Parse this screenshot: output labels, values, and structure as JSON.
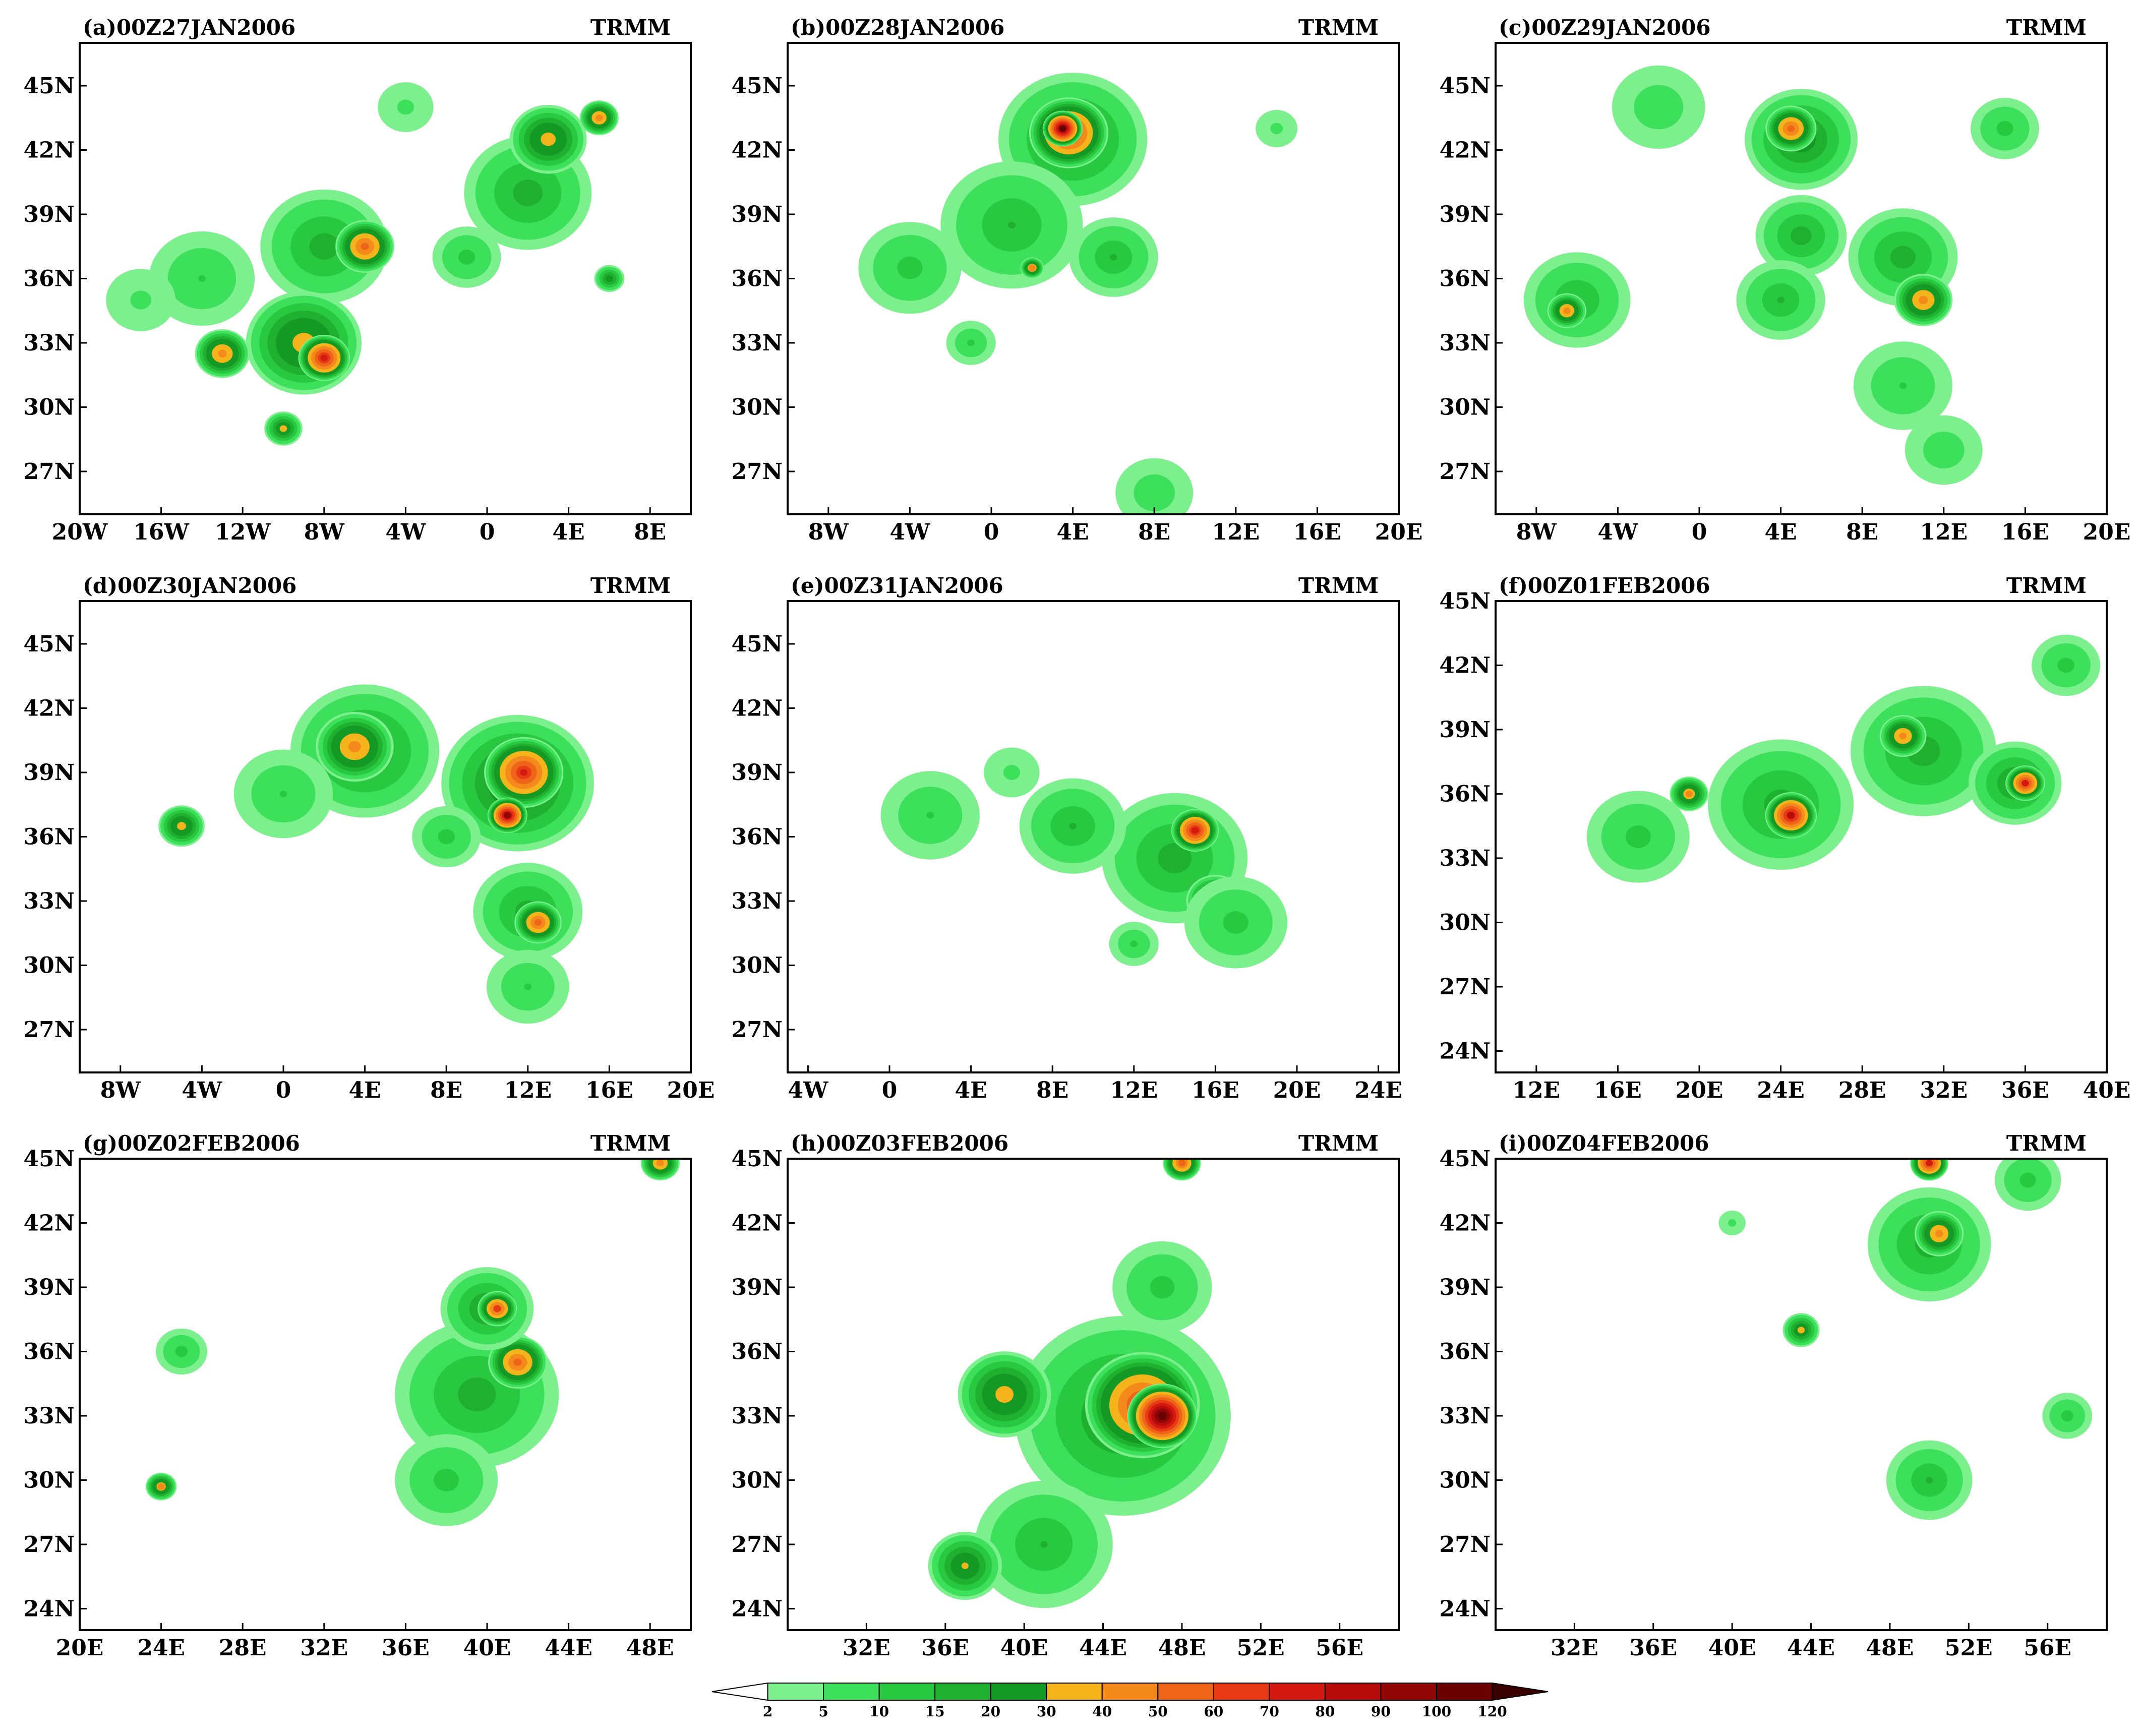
{
  "product": "TRMM",
  "units_note": "",
  "panels": [
    {
      "id": "a",
      "title": "(a)00Z27JAN2006",
      "label": "TRMM",
      "lat_ticks": [
        "45N",
        "42N",
        "39N",
        "36N",
        "33N",
        "30N",
        "27N"
      ],
      "lon_ticks": [
        "20W",
        "16W",
        "12W",
        "8W",
        "4W",
        "0",
        "4E",
        "8E"
      ],
      "blobs": [
        {
          "lon": -8,
          "lat": 37.5,
          "r": 3.5,
          "v": 18
        },
        {
          "lon": -9,
          "lat": 33,
          "r": 3,
          "v": 35
        },
        {
          "lon": -8,
          "lat": 32.3,
          "r": 1.3,
          "v": 75
        },
        {
          "lon": -6,
          "lat": 37.5,
          "r": 1.5,
          "v": 55
        },
        {
          "lon": -14,
          "lat": 36,
          "r": 3.2,
          "v": 10
        },
        {
          "lon": -13,
          "lat": 32.5,
          "r": 1.4,
          "v": 45
        },
        {
          "lon": -17,
          "lat": 35,
          "r": 2.5,
          "v": 6
        },
        {
          "lon": 2,
          "lat": 40,
          "r": 3.5,
          "v": 18
        },
        {
          "lon": 3,
          "lat": 42.5,
          "r": 2,
          "v": 35
        },
        {
          "lon": 5.5,
          "lat": 43.5,
          "r": 1,
          "v": 45
        },
        {
          "lon": -1,
          "lat": 37,
          "r": 2,
          "v": 12
        },
        {
          "lon": 6,
          "lat": 36,
          "r": 0.8,
          "v": 25
        },
        {
          "lon": -10,
          "lat": 29,
          "r": 1,
          "v": 30
        },
        {
          "lon": -4,
          "lat": 44,
          "r": 2,
          "v": 6
        }
      ]
    },
    {
      "id": "b",
      "title": "(b)00Z28JAN2006",
      "label": "TRMM",
      "lat_ticks": [
        "45N",
        "42N",
        "39N",
        "36N",
        "33N",
        "30N",
        "27N"
      ],
      "lon_ticks": [
        "8W",
        "4W",
        "0",
        "4E",
        "8E",
        "12E",
        "16E",
        "20E"
      ],
      "blobs": [
        {
          "lon": 4,
          "lat": 42.5,
          "r": 4,
          "v": 22
        },
        {
          "lon": 3.8,
          "lat": 42.8,
          "r": 2,
          "v": 70
        },
        {
          "lon": 3.5,
          "lat": 43,
          "r": 1,
          "v": 100
        },
        {
          "lon": 1,
          "lat": 38.5,
          "r": 4,
          "v": 15
        },
        {
          "lon": -4,
          "lat": 36.5,
          "r": 3,
          "v": 12
        },
        {
          "lon": 6,
          "lat": 37,
          "r": 2.5,
          "v": 15
        },
        {
          "lon": 8,
          "lat": 26,
          "r": 2.5,
          "v": 8
        },
        {
          "lon": -1,
          "lat": 33,
          "r": 1.5,
          "v": 10
        },
        {
          "lon": 2,
          "lat": 36.5,
          "r": 0.6,
          "v": 45
        },
        {
          "lon": 14,
          "lat": 43,
          "r": 1.5,
          "v": 6
        }
      ]
    },
    {
      "id": "c",
      "title": "(c)00Z29JAN2006",
      "label": "TRMM",
      "lat_ticks": [
        "45N",
        "42N",
        "39N",
        "36N",
        "33N",
        "30N",
        "27N"
      ],
      "lon_ticks": [
        "8W",
        "4W",
        "0",
        "4E",
        "8E",
        "12E",
        "16E",
        "20E"
      ],
      "blobs": [
        {
          "lon": 5,
          "lat": 42.5,
          "r": 3,
          "v": 25
        },
        {
          "lon": 4.5,
          "lat": 43,
          "r": 1.3,
          "v": 55
        },
        {
          "lon": 5,
          "lat": 38,
          "r": 2.5,
          "v": 18
        },
        {
          "lon": 4,
          "lat": 35,
          "r": 2.5,
          "v": 15
        },
        {
          "lon": 10,
          "lat": 37,
          "r": 3,
          "v": 18
        },
        {
          "lon": 11,
          "lat": 35,
          "r": 1.5,
          "v": 45
        },
        {
          "lon": -6,
          "lat": 35,
          "r": 3,
          "v": 15
        },
        {
          "lon": -6.5,
          "lat": 34.5,
          "r": 1,
          "v": 45
        },
        {
          "lon": 10,
          "lat": 31,
          "r": 3,
          "v": 10
        },
        {
          "lon": 12,
          "lat": 28,
          "r": 2.5,
          "v": 8
        },
        {
          "lon": -2,
          "lat": 44,
          "r": 3,
          "v": 8
        },
        {
          "lon": 15,
          "lat": 43,
          "r": 2,
          "v": 12
        }
      ]
    },
    {
      "id": "d",
      "title": "(d)00Z30JAN2006",
      "label": "TRMM",
      "lat_ticks": [
        "45N",
        "42N",
        "39N",
        "36N",
        "33N",
        "30N",
        "27N"
      ],
      "lon_ticks": [
        "8W",
        "4W",
        "0",
        "4E",
        "8E",
        "12E",
        "16E",
        "20E"
      ],
      "blobs": [
        {
          "lon": 11.5,
          "lat": 38.5,
          "r": 4,
          "v": 30
        },
        {
          "lon": 11.8,
          "lat": 39,
          "r": 2,
          "v": 70
        },
        {
          "lon": 11,
          "lat": 37,
          "r": 1,
          "v": 90
        },
        {
          "lon": 4,
          "lat": 40,
          "r": 4,
          "v": 22
        },
        {
          "lon": 3.5,
          "lat": 40.2,
          "r": 2,
          "v": 45
        },
        {
          "lon": 12,
          "lat": 32.5,
          "r": 3,
          "v": 18
        },
        {
          "lon": 12.5,
          "lat": 32,
          "r": 1.2,
          "v": 55
        },
        {
          "lon": -5,
          "lat": 36.5,
          "r": 1.2,
          "v": 35
        },
        {
          "lon": 12,
          "lat": 29,
          "r": 2.5,
          "v": 10
        },
        {
          "lon": 0,
          "lat": 38,
          "r": 3,
          "v": 10
        },
        {
          "lon": 8,
          "lat": 36,
          "r": 2,
          "v": 12
        }
      ]
    },
    {
      "id": "e",
      "title": "(e)00Z31JAN2006",
      "label": "TRMM",
      "lat_ticks": [
        "45N",
        "42N",
        "39N",
        "36N",
        "33N",
        "30N",
        "27N"
      ],
      "lon_ticks": [
        "4W",
        "0",
        "4E",
        "8E",
        "12E",
        "16E",
        "20E",
        "24E"
      ],
      "blobs": [
        {
          "lon": 14,
          "lat": 35,
          "r": 4,
          "v": 18
        },
        {
          "lon": 15,
          "lat": 36.3,
          "r": 1.2,
          "v": 75
        },
        {
          "lon": 16,
          "lat": 33,
          "r": 1.5,
          "v": 45
        },
        {
          "lon": 9,
          "lat": 36.5,
          "r": 3,
          "v": 15
        },
        {
          "lon": 2,
          "lat": 37,
          "r": 3,
          "v": 10
        },
        {
          "lon": 17,
          "lat": 32,
          "r": 3,
          "v": 12
        },
        {
          "lon": 12,
          "lat": 31,
          "r": 1.5,
          "v": 10
        },
        {
          "lon": 6,
          "lat": 39,
          "r": 2,
          "v": 6
        }
      ]
    },
    {
      "id": "f",
      "title": "(f)00Z01FEB2006",
      "label": "TRMM",
      "lat_ticks": [
        "45N",
        "42N",
        "39N",
        "36N",
        "33N",
        "30N",
        "27N",
        "24N"
      ],
      "lon_ticks": [
        "12E",
        "16E",
        "20E",
        "24E",
        "28E",
        "32E",
        "36E",
        "40E"
      ],
      "blobs": [
        {
          "lon": 24,
          "lat": 35.5,
          "r": 4,
          "v": 18
        },
        {
          "lon": 24.5,
          "lat": 35,
          "r": 1.3,
          "v": 80
        },
        {
          "lon": 31,
          "lat": 38,
          "r": 4,
          "v": 18
        },
        {
          "lon": 30,
          "lat": 38.7,
          "r": 1.2,
          "v": 45
        },
        {
          "lon": 35.5,
          "lat": 36.5,
          "r": 2.5,
          "v": 22
        },
        {
          "lon": 36,
          "lat": 36.5,
          "r": 1,
          "v": 70
        },
        {
          "lon": 17,
          "lat": 34,
          "r": 3,
          "v": 12
        },
        {
          "lon": 38,
          "lat": 42,
          "r": 2,
          "v": 12
        },
        {
          "lon": 19.5,
          "lat": 36,
          "r": 1,
          "v": 40
        }
      ]
    },
    {
      "id": "g",
      "title": "(g)00Z02FEB2006",
      "label": "TRMM",
      "lat_ticks": [
        "45N",
        "42N",
        "39N",
        "36N",
        "33N",
        "30N",
        "27N",
        "24N"
      ],
      "lon_ticks": [
        "20E",
        "24E",
        "28E",
        "32E",
        "36E",
        "40E",
        "44E",
        "48E"
      ],
      "blobs": [
        {
          "lon": 39.5,
          "lat": 34,
          "r": 4.5,
          "v": 18
        },
        {
          "lon": 41.5,
          "lat": 35.5,
          "r": 1.5,
          "v": 55
        },
        {
          "lon": 40,
          "lat": 38,
          "r": 2.5,
          "v": 22
        },
        {
          "lon": 40.5,
          "lat": 38,
          "r": 1,
          "v": 60
        },
        {
          "lon": 38,
          "lat": 30,
          "r": 3,
          "v": 12
        },
        {
          "lon": 48.5,
          "lat": 44.8,
          "r": 1,
          "v": 45
        },
        {
          "lon": 25,
          "lat": 36,
          "r": 1.5,
          "v": 12
        },
        {
          "lon": 24,
          "lat": 29.7,
          "r": 0.8,
          "v": 40
        }
      ]
    },
    {
      "id": "h",
      "title": "(h)00Z03FEB2006",
      "label": "TRMM",
      "lat_ticks": [
        "45N",
        "42N",
        "39N",
        "36N",
        "33N",
        "30N",
        "27N",
        "24N"
      ],
      "lon_ticks": [
        "32E",
        "36E",
        "40E",
        "44E",
        "48E",
        "52E",
        "56E"
      ],
      "blobs": [
        {
          "lon": 45,
          "lat": 33,
          "r": 6,
          "v": 22
        },
        {
          "lon": 46,
          "lat": 33.5,
          "r": 3,
          "v": 65
        },
        {
          "lon": 47,
          "lat": 33,
          "r": 1.8,
          "v": 110
        },
        {
          "lon": 41,
          "lat": 27,
          "r": 4,
          "v": 15
        },
        {
          "lon": 39,
          "lat": 34,
          "r": 2.5,
          "v": 35
        },
        {
          "lon": 47,
          "lat": 39,
          "r": 3,
          "v": 12
        },
        {
          "lon": 37,
          "lat": 26,
          "r": 2,
          "v": 30
        },
        {
          "lon": 48,
          "lat": 44.8,
          "r": 1,
          "v": 55
        }
      ]
    },
    {
      "id": "i",
      "title": "(i)00Z04FEB2006",
      "label": "TRMM",
      "lat_ticks": [
        "45N",
        "42N",
        "39N",
        "36N",
        "33N",
        "30N",
        "27N",
        "24N"
      ],
      "lon_ticks": [
        "32E",
        "36E",
        "40E",
        "44E",
        "48E",
        "52E",
        "56E"
      ],
      "blobs": [
        {
          "lon": 50,
          "lat": 41,
          "r": 3.5,
          "v": 18
        },
        {
          "lon": 50.5,
          "lat": 41.5,
          "r": 1.3,
          "v": 45
        },
        {
          "lon": 50,
          "lat": 30,
          "r": 2.5,
          "v": 15
        },
        {
          "lon": 50,
          "lat": 44.8,
          "r": 1,
          "v": 70
        },
        {
          "lon": 55,
          "lat": 44,
          "r": 2,
          "v": 12
        },
        {
          "lon": 43.5,
          "lat": 37,
          "r": 1,
          "v": 30
        },
        {
          "lon": 57,
          "lat": 33,
          "r": 1.5,
          "v": 12
        },
        {
          "lon": 40,
          "lat": 42,
          "r": 1,
          "v": 6
        }
      ]
    }
  ],
  "colorbar": {
    "labels": [
      "2",
      "5",
      "10",
      "15",
      "20",
      "30",
      "40",
      "50",
      "60",
      "70",
      "80",
      "90",
      "100",
      "120"
    ],
    "colors": [
      "#7cf08c",
      "#3ce05a",
      "#28c840",
      "#20b030",
      "#149a24",
      "#f6b41c",
      "#f48a1c",
      "#ee6418",
      "#e83a14",
      "#d41a10",
      "#b80c0c",
      "#920606",
      "#6a0202"
    ]
  }
}
